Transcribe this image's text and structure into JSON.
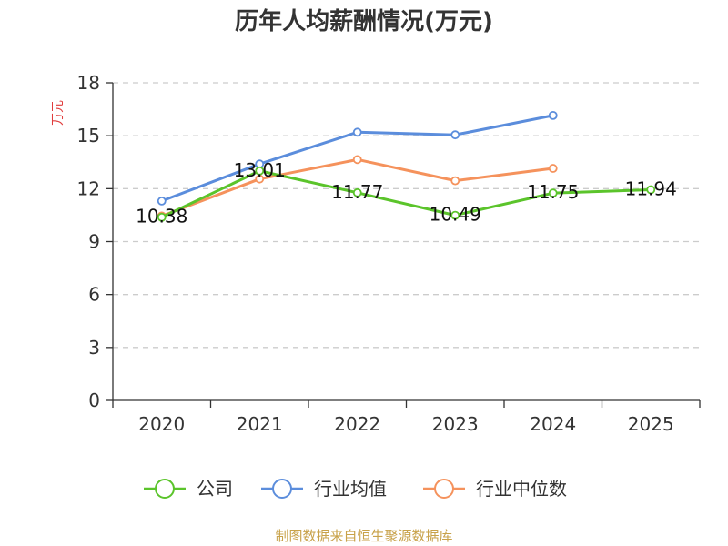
{
  "chart_data": {
    "type": "line",
    "title": "历年人均薪酬情况(万元)",
    "ylabel": "万元",
    "xlabel": "",
    "categories": [
      "2020",
      "2021",
      "2022",
      "2023",
      "2024",
      "2025"
    ],
    "ylim": [
      0,
      18
    ],
    "yticks": [
      0,
      3,
      6,
      9,
      12,
      15,
      18
    ],
    "grid": true,
    "legend_position": "bottom",
    "series": [
      {
        "name": "行业均值",
        "color": "#5b8ddc",
        "values": [
          11.3,
          13.4,
          15.2,
          15.05,
          16.15,
          null
        ]
      },
      {
        "name": "行业中位数",
        "color": "#f5925c",
        "values": [
          10.45,
          12.55,
          13.65,
          12.45,
          13.15,
          null
        ]
      },
      {
        "name": "公司",
        "color": "#5bc42b",
        "values": [
          10.38,
          13.01,
          11.77,
          10.49,
          11.75,
          11.94
        ],
        "labels": [
          "10.38",
          "13.01",
          "11.77",
          "10.49",
          "11.75",
          "11.94"
        ]
      }
    ],
    "legend_order": [
      "公司",
      "行业均值",
      "行业中位数"
    ]
  },
  "colors": {
    "axis": "#333333",
    "grid": "#cccccc",
    "ylabel": "#e03c3c",
    "source": "#c8a24a"
  },
  "source": "制图数据来自恒生聚源数据库"
}
